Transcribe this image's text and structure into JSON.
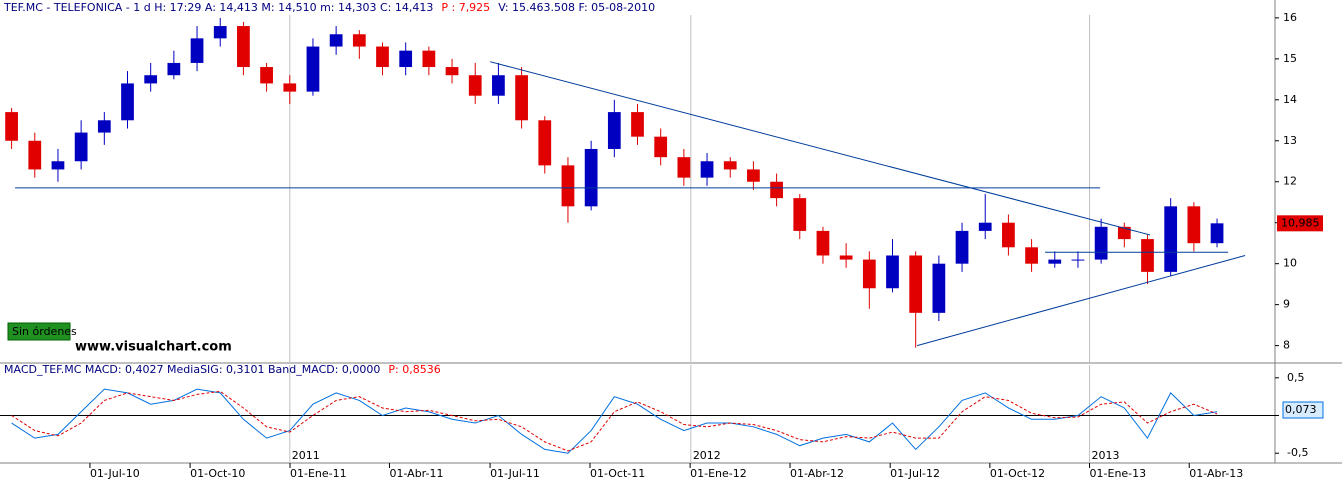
{
  "chart_data": [
    {
      "type": "candlestick",
      "header": [
        {
          "text": "TEF.MC - TELEFONICA - 1 d  H: 17:29  A: 14,413  M: 14,510  m: 14,303  C: 14,413",
          "color": "#000080"
        },
        {
          "text": "P : 7,925",
          "color": "#ff0000"
        },
        {
          "text": "V: 15.463.508  F: 05-08-2010",
          "color": "#000080"
        }
      ],
      "open": [
        13.7,
        13.0,
        12.3,
        12.5,
        13.2,
        13.5,
        14.4,
        14.6,
        14.9,
        15.5,
        15.8,
        14.8,
        14.4,
        14.2,
        15.3,
        15.6,
        15.3,
        14.8,
        15.2,
        14.8,
        14.6,
        14.1,
        14.6,
        13.5,
        12.4,
        11.4,
        12.8,
        13.7,
        13.1,
        12.6,
        12.1,
        12.5,
        12.3,
        12.0,
        11.6,
        10.8,
        10.2,
        10.1,
        9.4,
        10.2,
        8.8,
        10.0,
        10.8,
        11.0,
        10.4,
        10.0,
        10.1,
        10.1,
        10.9,
        10.6,
        9.8,
        11.4,
        10.5
      ],
      "high": [
        13.8,
        13.2,
        12.8,
        13.5,
        13.7,
        14.7,
        14.9,
        15.2,
        15.8,
        16.0,
        15.9,
        14.9,
        14.6,
        15.5,
        15.8,
        15.7,
        15.4,
        15.4,
        15.3,
        15.0,
        14.9,
        14.9,
        14.8,
        13.6,
        12.6,
        13.0,
        14.0,
        13.9,
        13.3,
        12.8,
        12.7,
        12.6,
        12.5,
        12.2,
        11.7,
        10.9,
        10.5,
        10.3,
        10.6,
        10.3,
        10.2,
        11.0,
        11.7,
        11.2,
        10.6,
        10.3,
        10.3,
        11.1,
        11.0,
        10.7,
        11.6,
        11.5,
        11.1
      ],
      "low": [
        12.8,
        12.1,
        12.0,
        12.3,
        12.9,
        13.3,
        14.2,
        14.5,
        14.7,
        15.3,
        14.6,
        14.2,
        13.9,
        14.1,
        15.1,
        15.0,
        14.6,
        14.6,
        14.6,
        14.4,
        13.9,
        13.9,
        13.3,
        12.2,
        11.0,
        11.3,
        12.6,
        12.9,
        12.4,
        11.9,
        11.9,
        12.1,
        11.8,
        11.4,
        10.6,
        10.0,
        9.9,
        8.9,
        9.3,
        7.95,
        8.6,
        9.8,
        10.6,
        10.2,
        9.8,
        9.9,
        9.9,
        10.0,
        10.4,
        9.5,
        9.7,
        10.3,
        10.4
      ],
      "close": [
        13.0,
        12.3,
        12.5,
        13.2,
        13.5,
        14.4,
        14.6,
        14.9,
        15.5,
        15.8,
        14.8,
        14.4,
        14.2,
        15.3,
        15.6,
        15.3,
        14.8,
        15.2,
        14.8,
        14.6,
        14.1,
        14.6,
        13.5,
        12.4,
        11.4,
        12.8,
        13.7,
        13.1,
        12.6,
        12.1,
        12.5,
        12.3,
        12.0,
        11.6,
        10.8,
        10.2,
        10.1,
        9.4,
        10.2,
        8.8,
        10.0,
        10.8,
        11.0,
        10.4,
        10.0,
        10.1,
        10.1,
        10.9,
        10.6,
        9.8,
        11.4,
        10.5,
        10.985
      ],
      "up_color": "#0000c0",
      "down_color": "#e00000",
      "xlim": [
        -0.5,
        54.5
      ],
      "ylim": [
        7.6,
        16.07
      ],
      "yticks": [
        8,
        9,
        10,
        11,
        12,
        13,
        14,
        15,
        16
      ],
      "year_ticks": [
        {
          "value": 12.0,
          "label": "2011"
        },
        {
          "value": 29.3,
          "label": "2012"
        },
        {
          "value": 46.5,
          "label": "2013"
        }
      ],
      "trendlines": [
        {
          "x1": 0.15,
          "y1": 11.85,
          "x2": 46.96,
          "y2": 11.85
        },
        {
          "x1": 20.64,
          "y1": 14.93,
          "x2": 49.11,
          "y2": 10.7
        },
        {
          "x1": 39.06,
          "y1": 8.0,
          "x2": 53.21,
          "y2": 10.2
        },
        {
          "x1": 44.58,
          "y1": 10.28,
          "x2": 52.48,
          "y2": 10.28
        }
      ],
      "trend_color": "#003c9c",
      "last_price": {
        "value": 10.985,
        "label": "10,985"
      },
      "annotations": [
        "Sin órdenes",
        "www.visualchart.com"
      ]
    },
    {
      "type": "macd",
      "header": [
        {
          "text": "MACD_TEF.MC MACD: 0,4027 MediaSIG: 0,3101 Band_MACD: 0,0000",
          "color": "#000080"
        },
        {
          "text": "P: 0,8536",
          "color": "#ff0000"
        }
      ],
      "series": [
        {
          "color": "#0070e0",
          "values": [
            -0.1,
            -0.3,
            -0.25,
            0.05,
            0.35,
            0.3,
            0.15,
            0.2,
            0.35,
            0.3,
            -0.05,
            -0.3,
            -0.2,
            0.15,
            0.3,
            0.2,
            0.0,
            0.1,
            0.05,
            -0.05,
            -0.1,
            0.0,
            -0.25,
            -0.45,
            -0.5,
            -0.2,
            0.25,
            0.15,
            -0.05,
            -0.2,
            -0.1,
            -0.1,
            -0.15,
            -0.25,
            -0.4,
            -0.3,
            -0.25,
            -0.35,
            -0.1,
            -0.45,
            -0.15,
            0.2,
            0.3,
            0.1,
            -0.05,
            -0.05,
            0.0,
            0.25,
            0.1,
            -0.3,
            0.3,
            0.0,
            0.05
          ]
        },
        {
          "color": "#e00000",
          "values": [
            0.0,
            -0.2,
            -0.27,
            -0.1,
            0.2,
            0.3,
            0.25,
            0.2,
            0.28,
            0.32,
            0.1,
            -0.15,
            -0.22,
            0.0,
            0.2,
            0.25,
            0.1,
            0.05,
            0.07,
            0.0,
            -0.07,
            -0.05,
            -0.15,
            -0.35,
            -0.47,
            -0.35,
            0.05,
            0.18,
            0.05,
            -0.12,
            -0.15,
            -0.1,
            -0.12,
            -0.2,
            -0.32,
            -0.35,
            -0.28,
            -0.3,
            -0.22,
            -0.3,
            -0.3,
            0.05,
            0.25,
            0.2,
            0.03,
            -0.03,
            -0.02,
            0.15,
            0.18,
            -0.1,
            0.05,
            0.15,
            0.02
          ]
        }
      ],
      "xlim": [
        -0.5,
        54.5
      ],
      "ylim": [
        -0.63,
        0.67
      ],
      "yticks": [
        {
          "value": 0.5,
          "label": "0,5"
        },
        0,
        {
          "value": -0.5,
          "label": "-0,5"
        }
      ],
      "last_value": {
        "value": 0.073,
        "label": "0,073"
      },
      "xticks": [
        {
          "value": 3.38,
          "label": "01-Jul-10"
        },
        {
          "value": 7.7,
          "label": "01-Oct-10"
        },
        {
          "value": 12.01,
          "label": "01-Ene-11"
        },
        {
          "value": 16.3,
          "label": "01-Abr-11"
        },
        {
          "value": 20.64,
          "label": "01-Jul-11"
        },
        {
          "value": 24.95,
          "label": "01-Oct-11"
        },
        {
          "value": 29.27,
          "label": "01-Ene-12"
        },
        {
          "value": 33.58,
          "label": "01-Abr-12"
        },
        {
          "value": 37.9,
          "label": "01-Jul-12"
        },
        {
          "value": 42.2,
          "label": "01-Oct-12"
        },
        {
          "value": 46.5,
          "label": "01-Ene-13"
        },
        {
          "value": 50.8,
          "label": "01-Abr-13"
        }
      ]
    }
  ]
}
